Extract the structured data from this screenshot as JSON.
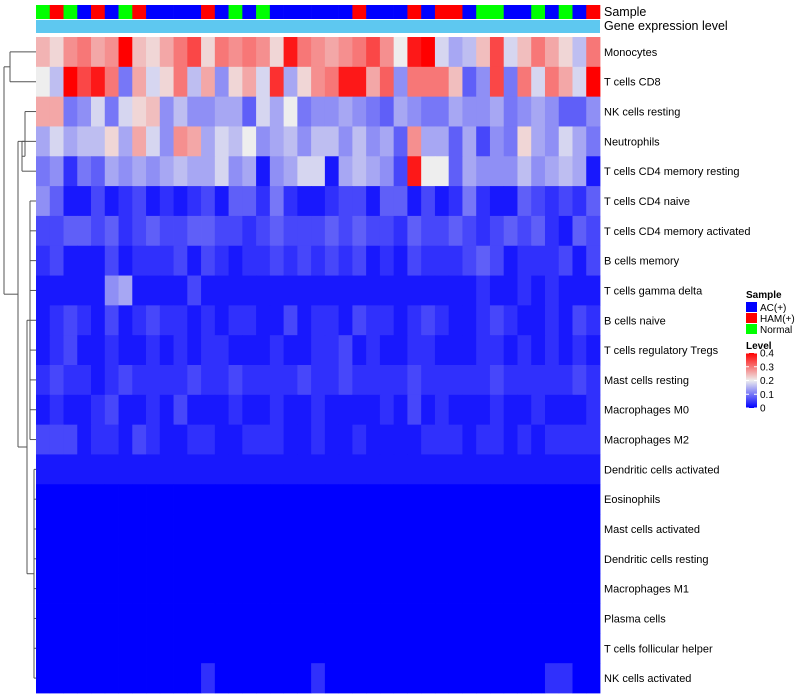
{
  "chart_data": {
    "type": "heatmap",
    "title": "",
    "annotation_labels": {
      "sample": "Sample",
      "gene_expression": "Gene expression level"
    },
    "sample_annotation": [
      "Normal",
      "HAM(+)",
      "Normal",
      "AC(+)",
      "HAM(+)",
      "AC(+)",
      "Normal",
      "HAM(+)",
      "AC(+)",
      "AC(+)",
      "AC(+)",
      "AC(+)",
      "HAM(+)",
      "AC(+)",
      "Normal",
      "AC(+)",
      "Normal",
      "AC(+)",
      "AC(+)",
      "AC(+)",
      "AC(+)",
      "AC(+)",
      "AC(+)",
      "HAM(+)",
      "AC(+)",
      "AC(+)",
      "AC(+)",
      "HAM(+)",
      "AC(+)",
      "HAM(+)",
      "HAM(+)",
      "AC(+)",
      "Normal",
      "Normal",
      "AC(+)",
      "AC(+)",
      "Normal",
      "AC(+)",
      "Normal",
      "AC(+)",
      "HAM(+)"
    ],
    "rows": [
      {
        "name": "Monocytes",
        "values": [
          0.25,
          0.22,
          0.28,
          0.3,
          0.26,
          0.28,
          0.4,
          0.24,
          0.22,
          0.26,
          0.3,
          0.34,
          0.22,
          0.3,
          0.28,
          0.3,
          0.28,
          0.22,
          0.38,
          0.3,
          0.28,
          0.26,
          0.28,
          0.3,
          0.34,
          0.28,
          0.2,
          0.38,
          0.4,
          0.18,
          0.14,
          0.16,
          0.24,
          0.34,
          0.18,
          0.24,
          0.3,
          0.26,
          0.22,
          0.16,
          0.3
        ]
      },
      {
        "name": "T cells CD8",
        "values": [
          0.2,
          0.16,
          0.4,
          0.34,
          0.38,
          0.3,
          0.1,
          0.26,
          0.18,
          0.22,
          0.3,
          0.16,
          0.26,
          0.12,
          0.22,
          0.26,
          0.18,
          0.36,
          0.14,
          0.22,
          0.28,
          0.3,
          0.38,
          0.38,
          0.26,
          0.32,
          0.12,
          0.3,
          0.3,
          0.3,
          0.24,
          0.08,
          0.12,
          0.34,
          0.1,
          0.3,
          0.18,
          0.3,
          0.26,
          0.18,
          0.4
        ]
      },
      {
        "name": "NK cells resting",
        "values": [
          0.26,
          0.26,
          0.1,
          0.12,
          0.18,
          0.1,
          0.18,
          0.22,
          0.24,
          0.12,
          0.16,
          0.12,
          0.12,
          0.14,
          0.14,
          0.08,
          0.18,
          0.14,
          0.2,
          0.1,
          0.12,
          0.12,
          0.14,
          0.12,
          0.1,
          0.08,
          0.14,
          0.12,
          0.1,
          0.1,
          0.14,
          0.12,
          0.12,
          0.14,
          0.1,
          0.12,
          0.14,
          0.12,
          0.08,
          0.08,
          0.12
        ]
      },
      {
        "name": "Neutrophils",
        "values": [
          0.14,
          0.18,
          0.14,
          0.16,
          0.16,
          0.22,
          0.14,
          0.26,
          0.18,
          0.12,
          0.28,
          0.26,
          0.14,
          0.18,
          0.16,
          0.2,
          0.12,
          0.14,
          0.16,
          0.12,
          0.16,
          0.16,
          0.12,
          0.16,
          0.12,
          0.14,
          0.08,
          0.28,
          0.14,
          0.14,
          0.08,
          0.14,
          0.06,
          0.12,
          0.1,
          0.22,
          0.14,
          0.12,
          0.18,
          0.14,
          0.1
        ]
      },
      {
        "name": "T cells CD4 memory resting",
        "values": [
          0.1,
          0.12,
          0.04,
          0.1,
          0.08,
          0.14,
          0.12,
          0.14,
          0.12,
          0.14,
          0.16,
          0.14,
          0.14,
          0.18,
          0.12,
          0.14,
          0.02,
          0.12,
          0.14,
          0.18,
          0.18,
          0.02,
          0.14,
          0.16,
          0.14,
          0.12,
          0.06,
          0.38,
          0.2,
          0.2,
          0.08,
          0.14,
          0.12,
          0.12,
          0.12,
          0.16,
          0.12,
          0.14,
          0.16,
          0.14,
          0.02
        ]
      },
      {
        "name": "T cells CD4 naive",
        "values": [
          0.12,
          0.08,
          0.02,
          0.02,
          0.06,
          0.02,
          0.04,
          0.06,
          0.02,
          0.04,
          0.02,
          0.04,
          0.06,
          0.02,
          0.08,
          0.08,
          0.04,
          0.1,
          0.04,
          0.02,
          0.02,
          0.04,
          0.06,
          0.06,
          0.02,
          0.08,
          0.08,
          0.02,
          0.06,
          0.02,
          0.04,
          0.1,
          0.04,
          0.02,
          0.02,
          0.08,
          0.06,
          0.04,
          0.06,
          0.04,
          0.08
        ]
      },
      {
        "name": "T cells CD4 memory activated",
        "values": [
          0.06,
          0.06,
          0.08,
          0.08,
          0.06,
          0.08,
          0.04,
          0.06,
          0.08,
          0.06,
          0.06,
          0.08,
          0.08,
          0.06,
          0.06,
          0.04,
          0.06,
          0.08,
          0.06,
          0.06,
          0.06,
          0.08,
          0.06,
          0.08,
          0.06,
          0.06,
          0.04,
          0.08,
          0.06,
          0.06,
          0.08,
          0.06,
          0.04,
          0.06,
          0.08,
          0.06,
          0.08,
          0.04,
          0.02,
          0.08,
          0.06
        ]
      },
      {
        "name": "B cells memory",
        "values": [
          0.04,
          0.06,
          0.02,
          0.02,
          0.02,
          0.06,
          0.02,
          0.04,
          0.04,
          0.04,
          0.06,
          0.02,
          0.06,
          0.04,
          0.02,
          0.04,
          0.04,
          0.06,
          0.04,
          0.06,
          0.04,
          0.06,
          0.04,
          0.06,
          0.02,
          0.04,
          0.02,
          0.06,
          0.04,
          0.04,
          0.04,
          0.06,
          0.08,
          0.06,
          0.02,
          0.04,
          0.04,
          0.04,
          0.06,
          0.02,
          0.06
        ]
      },
      {
        "name": "T cells gamma delta",
        "values": [
          0.02,
          0.02,
          0.02,
          0.02,
          0.02,
          0.12,
          0.14,
          0.02,
          0.02,
          0.02,
          0.02,
          0.06,
          0.02,
          0.02,
          0.02,
          0.02,
          0.02,
          0.02,
          0.02,
          0.02,
          0.02,
          0.02,
          0.02,
          0.02,
          0.02,
          0.02,
          0.02,
          0.02,
          0.02,
          0.02,
          0.02,
          0.02,
          0.04,
          0.02,
          0.02,
          0.04,
          0.02,
          0.04,
          0.02,
          0.02,
          0.02
        ]
      },
      {
        "name": "B cells naive",
        "values": [
          0.02,
          0.04,
          0.06,
          0.04,
          0.02,
          0.06,
          0.02,
          0.04,
          0.06,
          0.04,
          0.04,
          0.02,
          0.04,
          0.02,
          0.04,
          0.04,
          0.02,
          0.02,
          0.06,
          0.02,
          0.04,
          0.04,
          0.02,
          0.06,
          0.04,
          0.04,
          0.02,
          0.04,
          0.06,
          0.04,
          0.02,
          0.02,
          0.04,
          0.06,
          0.04,
          0.02,
          0.02,
          0.04,
          0.02,
          0.06,
          0.04
        ]
      },
      {
        "name": "T cells regulatory  Tregs",
        "values": [
          0.02,
          0.04,
          0.06,
          0.02,
          0.02,
          0.04,
          0.02,
          0.02,
          0.04,
          0.02,
          0.04,
          0.02,
          0.04,
          0.04,
          0.02,
          0.02,
          0.02,
          0.04,
          0.02,
          0.02,
          0.04,
          0.04,
          0.06,
          0.02,
          0.04,
          0.02,
          0.02,
          0.04,
          0.04,
          0.02,
          0.02,
          0.02,
          0.04,
          0.04,
          0.02,
          0.04,
          0.02,
          0.04,
          0.02,
          0.04,
          0.02
        ]
      },
      {
        "name": "Mast cells resting",
        "values": [
          0.04,
          0.06,
          0.04,
          0.04,
          0.02,
          0.04,
          0.06,
          0.04,
          0.04,
          0.04,
          0.04,
          0.06,
          0.04,
          0.04,
          0.06,
          0.04,
          0.04,
          0.04,
          0.04,
          0.06,
          0.04,
          0.04,
          0.06,
          0.04,
          0.04,
          0.04,
          0.04,
          0.06,
          0.04,
          0.04,
          0.04,
          0.04,
          0.04,
          0.06,
          0.04,
          0.04,
          0.04,
          0.04,
          0.04,
          0.06,
          0.04
        ]
      },
      {
        "name": "Macrophages M0",
        "values": [
          0.02,
          0.04,
          0.02,
          0.02,
          0.04,
          0.06,
          0.02,
          0.02,
          0.04,
          0.02,
          0.06,
          0.02,
          0.02,
          0.02,
          0.04,
          0.02,
          0.02,
          0.04,
          0.02,
          0.02,
          0.04,
          0.02,
          0.02,
          0.02,
          0.02,
          0.04,
          0.02,
          0.06,
          0.02,
          0.04,
          0.02,
          0.02,
          0.02,
          0.04,
          0.02,
          0.02,
          0.04,
          0.02,
          0.02,
          0.02,
          0.04
        ]
      },
      {
        "name": "Macrophages M2",
        "values": [
          0.06,
          0.06,
          0.06,
          0.02,
          0.04,
          0.04,
          0.02,
          0.06,
          0.04,
          0.02,
          0.02,
          0.04,
          0.04,
          0.02,
          0.02,
          0.04,
          0.04,
          0.04,
          0.02,
          0.02,
          0.04,
          0.02,
          0.02,
          0.04,
          0.02,
          0.02,
          0.02,
          0.02,
          0.04,
          0.04,
          0.04,
          0.02,
          0.04,
          0.04,
          0.02,
          0.04,
          0.02,
          0.04,
          0.04,
          0.04,
          0.04
        ]
      },
      {
        "name": "Dendritic cells activated",
        "values": [
          0.02,
          0.02,
          0.02,
          0.02,
          0.02,
          0.02,
          0.02,
          0.02,
          0.02,
          0.02,
          0.02,
          0.02,
          0.02,
          0.02,
          0.02,
          0.02,
          0.02,
          0.02,
          0.02,
          0.02,
          0.02,
          0.02,
          0.02,
          0.02,
          0.02,
          0.02,
          0.02,
          0.02,
          0.02,
          0.02,
          0.02,
          0.02,
          0.02,
          0.02,
          0.02,
          0.02,
          0.02,
          0.02,
          0.02,
          0.02,
          0.02
        ]
      },
      {
        "name": "Eosinophils",
        "values": [
          0,
          0,
          0,
          0,
          0,
          0,
          0,
          0,
          0,
          0,
          0,
          0,
          0,
          0,
          0,
          0,
          0,
          0,
          0,
          0,
          0,
          0,
          0,
          0,
          0,
          0,
          0,
          0,
          0,
          0,
          0,
          0,
          0,
          0,
          0,
          0,
          0,
          0,
          0,
          0,
          0
        ]
      },
      {
        "name": "Mast cells activated",
        "values": [
          0,
          0,
          0,
          0,
          0,
          0,
          0,
          0,
          0,
          0,
          0,
          0,
          0,
          0,
          0,
          0,
          0,
          0,
          0,
          0,
          0,
          0,
          0,
          0,
          0,
          0,
          0,
          0,
          0,
          0,
          0,
          0,
          0,
          0,
          0,
          0,
          0,
          0,
          0,
          0,
          0
        ]
      },
      {
        "name": "Dendritic cells resting",
        "values": [
          0,
          0,
          0,
          0,
          0,
          0,
          0,
          0,
          0,
          0,
          0,
          0,
          0,
          0,
          0,
          0,
          0,
          0,
          0,
          0,
          0,
          0,
          0,
          0,
          0,
          0,
          0,
          0,
          0,
          0,
          0,
          0,
          0,
          0,
          0,
          0,
          0,
          0,
          0,
          0,
          0
        ]
      },
      {
        "name": "Macrophages M1",
        "values": [
          0,
          0,
          0,
          0,
          0,
          0,
          0,
          0,
          0,
          0,
          0,
          0,
          0,
          0,
          0,
          0,
          0,
          0,
          0,
          0,
          0,
          0,
          0,
          0,
          0,
          0,
          0,
          0,
          0,
          0,
          0,
          0,
          0,
          0,
          0,
          0,
          0,
          0,
          0,
          0,
          0
        ]
      },
      {
        "name": "Plasma cells",
        "values": [
          0,
          0,
          0,
          0,
          0,
          0,
          0,
          0,
          0,
          0,
          0,
          0,
          0,
          0,
          0,
          0,
          0,
          0,
          0,
          0,
          0,
          0,
          0,
          0,
          0,
          0,
          0,
          0,
          0,
          0,
          0,
          0,
          0,
          0,
          0,
          0,
          0,
          0,
          0,
          0,
          0
        ]
      },
      {
        "name": "T cells follicular helper",
        "values": [
          0,
          0,
          0,
          0,
          0,
          0,
          0,
          0,
          0,
          0,
          0,
          0,
          0,
          0,
          0,
          0,
          0,
          0,
          0,
          0,
          0,
          0,
          0,
          0,
          0,
          0,
          0,
          0,
          0,
          0,
          0,
          0,
          0,
          0,
          0,
          0,
          0,
          0,
          0,
          0,
          0
        ]
      },
      {
        "name": "NK cells activated",
        "values": [
          0,
          0,
          0,
          0,
          0,
          0,
          0,
          0,
          0,
          0,
          0,
          0,
          0.04,
          0,
          0,
          0,
          0,
          0,
          0,
          0,
          0.04,
          0,
          0,
          0,
          0,
          0,
          0,
          0,
          0,
          0,
          0,
          0,
          0,
          0,
          0,
          0,
          0,
          0.04,
          0.04,
          0,
          0
        ]
      }
    ],
    "legend": {
      "sample_title": "Sample",
      "sample_entries": [
        {
          "label": "AC(+)",
          "color": "#0000FF"
        },
        {
          "label": "HAM(+)",
          "color": "#FF0000"
        },
        {
          "label": "Normal",
          "color": "#00FF00"
        }
      ],
      "level_title": "Level",
      "level_ticks": [
        "0.4",
        "0.3",
        "0.2",
        "0.1",
        "0"
      ],
      "range": [
        0,
        0.4
      ]
    },
    "colors": {
      "low": "#0000FF",
      "mid": "#EEEEEE",
      "high": "#FF0000",
      "gene_expression_bar": "#5EC8F0"
    }
  }
}
